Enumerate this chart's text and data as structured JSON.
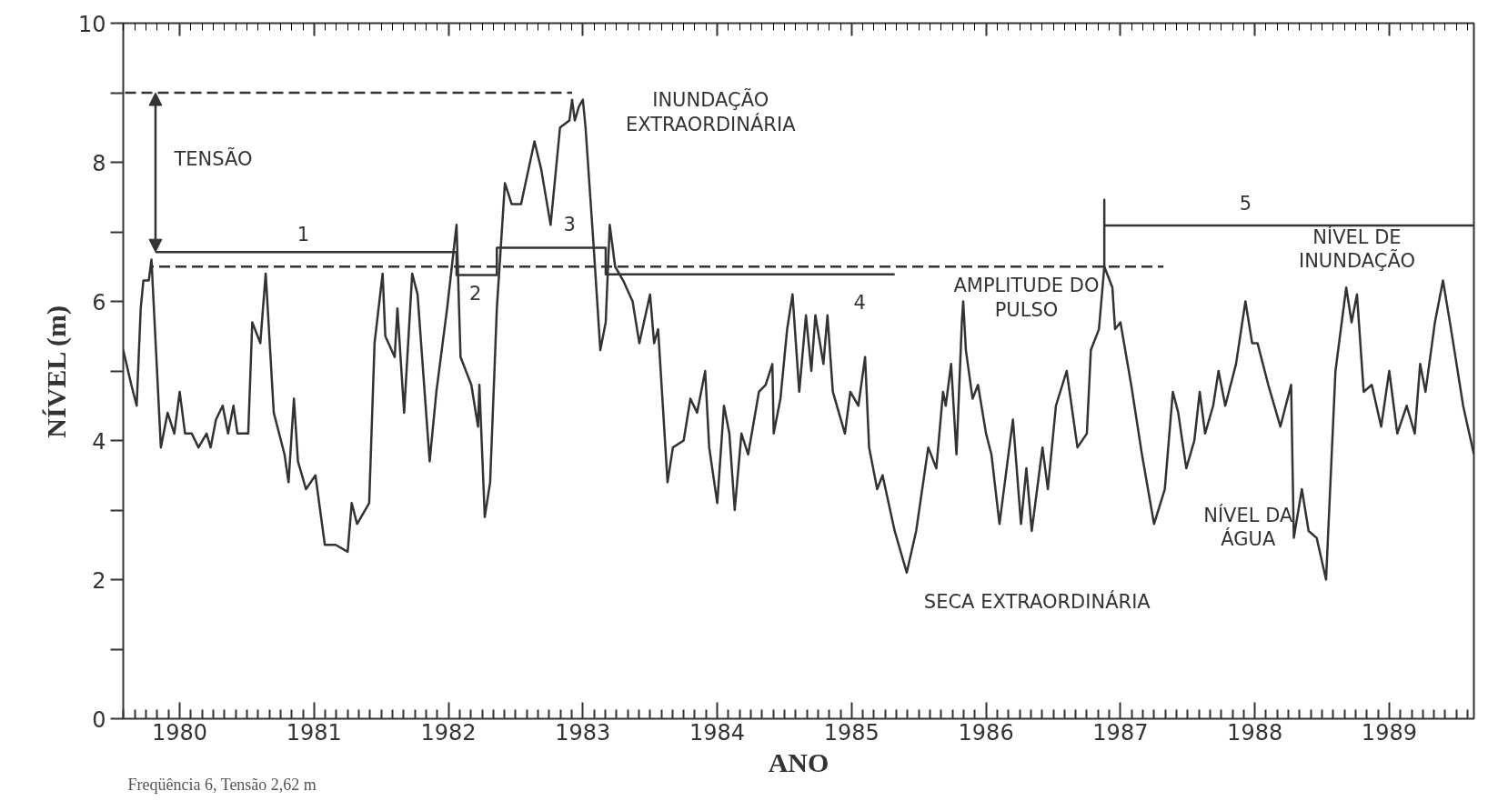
{
  "chart_data": {
    "type": "line",
    "xlabel": "ANO",
    "ylabel": "NÍVEL (m)",
    "xlim": [
      1979.58,
      1989.63
    ],
    "xticks": [
      1980,
      1981,
      1982,
      1983,
      1984,
      1985,
      1986,
      1987,
      1988,
      1989
    ],
    "ylim": [
      0,
      10
    ],
    "yticks": [
      0,
      {
        "value": 1,
        "label": null
      },
      2,
      {
        "value": 3,
        "label": null
      },
      4,
      {
        "value": 5,
        "label": null
      },
      6,
      {
        "value": 7,
        "label": null
      },
      8,
      {
        "value": 9,
        "label": null
      },
      10
    ],
    "grid": false,
    "marker": "none",
    "series": [
      {
        "color": "#333333",
        "line_style": "solid",
        "x": [
          1979.58,
          1979.64,
          1979.68,
          1979.71,
          1979.73,
          1979.77,
          1979.79,
          1979.86,
          1979.91,
          1979.96,
          1980.0,
          1980.04,
          1980.09,
          1980.14,
          1980.2,
          1980.23,
          1980.27,
          1980.32,
          1980.36,
          1980.4,
          1980.43,
          1980.51,
          1980.54,
          1980.6,
          1980.64,
          1980.7,
          1980.78,
          1980.81,
          1980.85,
          1980.88,
          1980.94,
          1981.01,
          1981.08,
          1981.16,
          1981.25,
          1981.28,
          1981.32,
          1981.41,
          1981.45,
          1981.51,
          1981.53,
          1981.6,
          1981.62,
          1981.67,
          1981.73,
          1981.77,
          1981.86,
          1981.91,
          1981.99,
          1982.06,
          1982.09,
          1982.17,
          1982.22,
          1982.23,
          1982.27,
          1982.31,
          1982.36,
          1982.42,
          1982.47,
          1982.54,
          1982.64,
          1982.69,
          1982.76,
          1982.83,
          1982.9,
          1982.92,
          1982.94,
          1982.97,
          1983.0,
          1983.02,
          1983.08,
          1983.13,
          1983.17,
          1983.2,
          1983.24,
          1983.3,
          1983.37,
          1983.42,
          1983.5,
          1983.53,
          1983.56,
          1983.63,
          1983.67,
          1983.75,
          1983.8,
          1983.85,
          1983.91,
          1983.94,
          1984.0,
          1984.05,
          1984.09,
          1984.13,
          1984.18,
          1984.23,
          1984.31,
          1984.36,
          1984.41,
          1984.42,
          1984.47,
          1984.52,
          1984.56,
          1984.61,
          1984.66,
          1984.7,
          1984.73,
          1984.79,
          1984.82,
          1984.86,
          1984.95,
          1984.99,
          1985.05,
          1985.1,
          1985.13,
          1985.19,
          1985.23,
          1985.32,
          1985.41,
          1985.48,
          1985.57,
          1985.63,
          1985.68,
          1985.7,
          1985.74,
          1985.78,
          1985.82,
          1985.83,
          1985.85,
          1985.9,
          1985.94,
          1986.0,
          1986.04,
          1986.1,
          1986.16,
          1986.2,
          1986.26,
          1986.3,
          1986.34,
          1986.42,
          1986.46,
          1986.52,
          1986.6,
          1986.68,
          1986.75,
          1986.78,
          1986.84,
          1986.88,
          1986.94,
          1986.96,
          1987.0,
          1987.08,
          1987.16,
          1987.25,
          1987.33,
          1987.39,
          1987.43,
          1987.49,
          1987.55,
          1987.59,
          1987.63,
          1987.69,
          1987.73,
          1987.78,
          1987.86,
          1987.93,
          1987.98,
          1988.02,
          1988.1,
          1988.19,
          1988.27,
          1988.29,
          1988.35,
          1988.4,
          1988.46,
          1988.53,
          1988.6,
          1988.68,
          1988.72,
          1988.76,
          1988.81,
          1988.87,
          1988.94,
          1989.0,
          1989.06,
          1989.13,
          1989.19,
          1989.23,
          1989.27,
          1989.34,
          1989.4,
          1989.46,
          1989.55,
          1989.63
        ],
        "values": [
          5.3,
          4.8,
          4.5,
          5.9,
          6.3,
          6.3,
          6.6,
          3.9,
          4.4,
          4.1,
          4.7,
          4.1,
          4.1,
          3.9,
          4.1,
          3.9,
          4.3,
          4.5,
          4.1,
          4.5,
          4.1,
          4.1,
          5.7,
          5.4,
          6.4,
          4.4,
          3.8,
          3.4,
          4.6,
          3.7,
          3.3,
          3.5,
          2.5,
          2.5,
          2.4,
          3.1,
          2.8,
          3.1,
          5.4,
          6.4,
          5.5,
          5.2,
          5.9,
          4.4,
          6.4,
          6.1,
          3.7,
          4.7,
          5.9,
          7.1,
          5.2,
          4.8,
          4.2,
          4.8,
          2.9,
          3.4,
          5.9,
          7.7,
          7.4,
          7.4,
          8.3,
          7.9,
          7.1,
          8.5,
          8.6,
          8.9,
          8.6,
          8.8,
          8.9,
          8.5,
          6.8,
          5.3,
          5.7,
          7.1,
          6.5,
          6.3,
          6.0,
          5.4,
          6.1,
          5.4,
          5.6,
          3.4,
          3.9,
          4.0,
          4.6,
          4.4,
          5.0,
          3.9,
          3.1,
          4.5,
          4.1,
          3.0,
          4.1,
          3.8,
          4.7,
          4.8,
          5.1,
          4.1,
          4.6,
          5.6,
          6.1,
          4.7,
          5.8,
          5.0,
          5.8,
          5.1,
          5.8,
          4.7,
          4.1,
          4.7,
          4.5,
          5.2,
          3.9,
          3.3,
          3.5,
          2.7,
          2.1,
          2.7,
          3.9,
          3.6,
          4.7,
          4.5,
          5.1,
          3.8,
          5.7,
          6.0,
          5.3,
          4.6,
          4.8,
          4.1,
          3.8,
          2.8,
          3.7,
          4.3,
          2.8,
          3.6,
          2.7,
          3.9,
          3.3,
          4.5,
          5.0,
          3.9,
          4.1,
          5.3,
          5.6,
          6.5,
          6.2,
          5.6,
          5.7,
          4.8,
          3.8,
          2.8,
          3.3,
          4.7,
          4.4,
          3.6,
          4.0,
          4.7,
          4.1,
          4.5,
          5.0,
          4.5,
          5.1,
          6.0,
          5.4,
          5.4,
          4.8,
          4.2,
          4.8,
          2.6,
          3.3,
          2.7,
          2.6,
          2.0,
          5.0,
          6.2,
          5.7,
          6.1,
          4.7,
          4.8,
          4.2,
          5.0,
          4.1,
          4.5,
          4.1,
          5.1,
          4.7,
          5.7,
          6.3,
          5.6,
          4.5,
          3.8
        ]
      },
      {
        "color": "#333333",
        "line_style": "dashed",
        "x": [
          1979.58,
          1982.92
        ],
        "values": [
          9.0,
          9.0
        ]
      },
      {
        "color": "#333333",
        "line_style": "dashed",
        "x": [
          1979.8,
          1987.32
        ],
        "values": [
          6.5,
          6.5
        ]
      },
      {
        "color": "#333333",
        "line_style": "solid",
        "x": [
          1979.82,
          1982.06,
          1982.06,
          1982.36,
          1982.36,
          1983.17,
          1983.17,
          1985.32,
          1986.0,
          1986.88,
          1986.88,
          1986.88,
          1989.63
        ],
        "values": [
          6.71,
          6.71,
          6.38,
          6.38,
          6.77,
          6.77,
          6.39,
          6.39,
          null,
          6.45,
          7.46,
          7.09,
          7.09
        ]
      }
    ],
    "annotations": [
      "TENSÃO",
      "1",
      "2",
      "3",
      "4",
      "5",
      "INUNDAÇÃO\nEXTRAORDINÁRIA",
      "AMPLITUDE DO\nPULSO",
      "SECA EXTRAORDINÁRIA",
      "NÍVEL DE\nINUNDAÇÃO",
      "NÍVEL DA\nÁGUA",
      "Freqüência 6, Tensão 2,62 m"
    ]
  }
}
